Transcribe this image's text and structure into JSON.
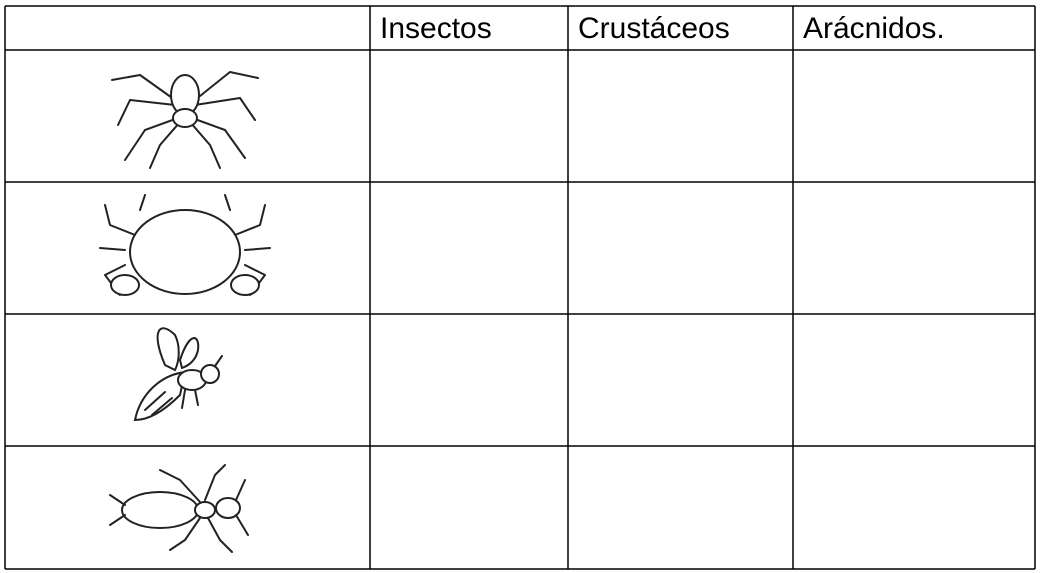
{
  "table": {
    "columns": [
      "Insectos",
      "Crustáceos",
      "Arácnidos."
    ]
  }
}
